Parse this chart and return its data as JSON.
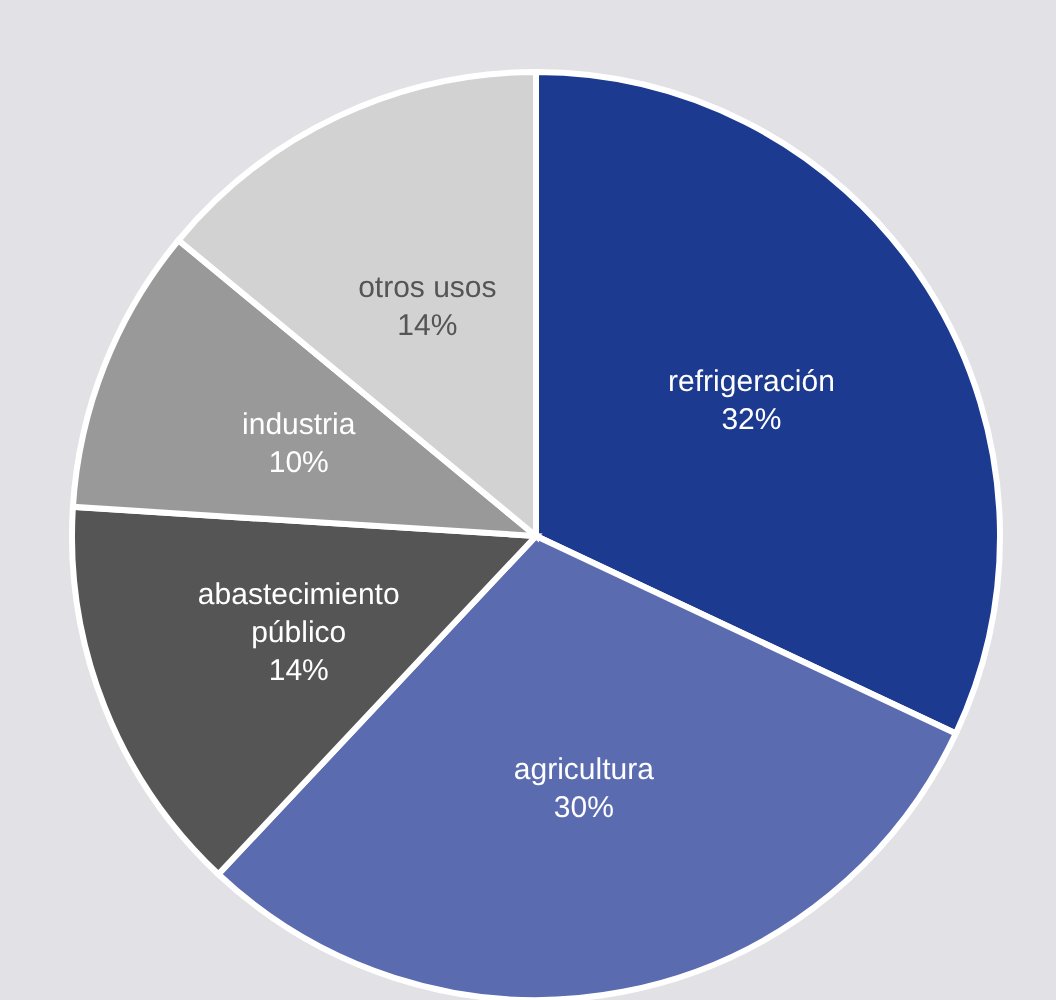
{
  "chart_data": {
    "type": "pie",
    "categories": [
      "refrigeración",
      "agricultura",
      "abastecimiento público",
      "industria",
      "otros usos"
    ],
    "values": [
      32,
      30,
      14,
      10,
      14
    ],
    "value_labels": [
      "32%",
      "30%",
      "14%",
      "10%",
      "14%"
    ],
    "colors": [
      "#1c3a8f",
      "#5a6bb0",
      "#555555",
      "#999999",
      "#d2d2d2"
    ]
  }
}
